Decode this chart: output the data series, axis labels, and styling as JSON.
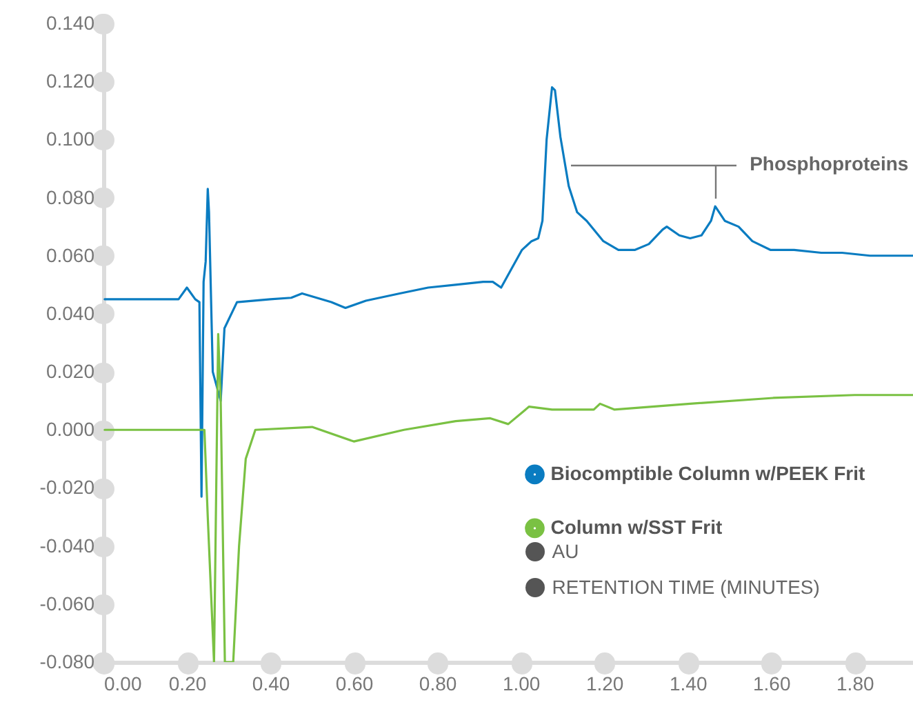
{
  "chart_data": {
    "type": "line",
    "xlabel": "RETENTION TIME (MINUTES)",
    "ylabel": "AU",
    "xlim": [
      0,
      1.94
    ],
    "ylim": [
      -0.08,
      0.14
    ],
    "xticks": [
      {
        "value": 0,
        "label": "0.00"
      },
      {
        "value": 0.2,
        "label": "0.20"
      },
      {
        "value": 0.4,
        "label": "0.40"
      },
      {
        "value": 0.6,
        "label": "0.60"
      },
      {
        "value": 0.8,
        "label": "0.80"
      },
      {
        "value": 1,
        "label": "1.00"
      },
      {
        "value": 1.2,
        "label": "1.20"
      },
      {
        "value": 1.4,
        "label": "1.40"
      },
      {
        "value": 1.6,
        "label": "1.60"
      },
      {
        "value": 1.8,
        "label": "1.80"
      }
    ],
    "yticks": [
      {
        "value": -0.08,
        "label": "-0.080"
      },
      {
        "value": -0.06,
        "label": "-0.060"
      },
      {
        "value": -0.04,
        "label": "-0.040"
      },
      {
        "value": -0.02,
        "label": "-0.020"
      },
      {
        "value": 0,
        "label": "0.000"
      },
      {
        "value": 0.02,
        "label": "0.020"
      },
      {
        "value": 0.04,
        "label": "0.040"
      },
      {
        "value": 0.06,
        "label": "0.060"
      },
      {
        "value": 0.08,
        "label": "0.080"
      },
      {
        "value": 0.1,
        "label": "0.100"
      },
      {
        "value": 0.12,
        "label": "0.120"
      },
      {
        "value": 0.14,
        "label": "0.140"
      }
    ],
    "grid": false,
    "legend": "bottom right",
    "marker": "none",
    "line_style": "solid",
    "annotations": [
      {
        "text": "Phosphoproteins",
        "x": 1.466,
        "y": 0.077
      }
    ],
    "series": [
      {
        "name": "Biocomptible Column w/PEEK Frit",
        "color": "#0a7cc1",
        "x": [
          0.003,
          0.18,
          0.2,
          0.22,
          0.23,
          0.235,
          0.24,
          0.245,
          0.25,
          0.253,
          0.262,
          0.281,
          0.29,
          0.32,
          0.4,
          0.45,
          0.476,
          0.546,
          0.58,
          0.629,
          0.71,
          0.778,
          0.844,
          0.91,
          0.933,
          0.953,
          0.976,
          1.003,
          1.026,
          1.042,
          1.052,
          1.062,
          1.075,
          1.082,
          1.095,
          1.115,
          1.135,
          1.158,
          1.198,
          1.234,
          1.274,
          1.307,
          1.34,
          1.35,
          1.38,
          1.406,
          1.433,
          1.456,
          1.466,
          1.489,
          1.522,
          1.555,
          1.598,
          1.655,
          1.72,
          1.77,
          1.837,
          1.94
        ],
        "values": [
          0.045,
          0.045,
          0.049,
          0.045,
          0.044,
          -0.023,
          0.051,
          0.058,
          0.083,
          0.075,
          0.02,
          0.01,
          0.035,
          0.044,
          0.045,
          0.0455,
          0.047,
          0.044,
          0.042,
          0.0445,
          0.047,
          0.049,
          0.05,
          0.051,
          0.051,
          0.049,
          0.055,
          0.062,
          0.065,
          0.066,
          0.072,
          0.1,
          0.118,
          0.117,
          0.101,
          0.084,
          0.075,
          0.072,
          0.065,
          0.062,
          0.062,
          0.064,
          0.069,
          0.07,
          0.067,
          0.066,
          0.067,
          0.072,
          0.077,
          0.072,
          0.07,
          0.065,
          0.062,
          0.062,
          0.061,
          0.061,
          0.06,
          0.06
        ]
      },
      {
        "name": "Column w/SST Frit",
        "color": "#7ac143",
        "x": [
          0.003,
          0.2,
          0.242,
          0.25,
          0.265,
          0.275,
          0.281,
          0.291,
          0.311,
          0.325,
          0.341,
          0.364,
          0.5,
          0.6,
          0.72,
          0.844,
          0.927,
          0.97,
          1.02,
          1.075,
          1.175,
          1.19,
          1.224,
          1.406,
          1.605,
          1.8,
          1.909,
          1.94
        ],
        "values": [
          0,
          0,
          0,
          -0.03,
          -0.08,
          0.033,
          0.01,
          -0.08,
          -0.08,
          -0.04,
          -0.01,
          0,
          0.001,
          -0.004,
          0,
          0.003,
          0.004,
          0.002,
          0.008,
          0.007,
          0.007,
          0.009,
          0.007,
          0.009,
          0.011,
          0.012,
          0.012,
          0.012
        ]
      }
    ]
  }
}
